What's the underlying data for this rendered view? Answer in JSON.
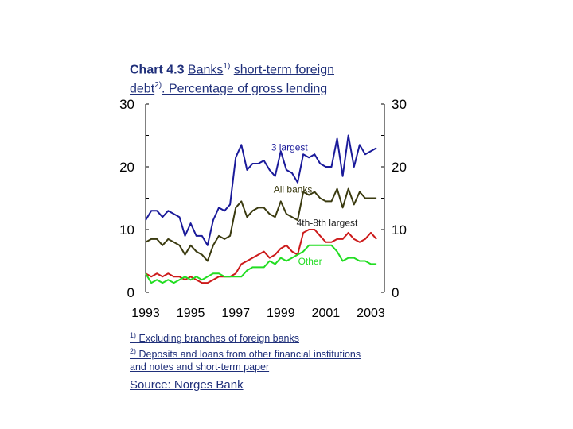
{
  "title": {
    "prefix": "Chart 4.3",
    "word1": "Banks",
    "sup1": "1)",
    "rest1": "short-term foreign",
    "word2": "debt",
    "sup2": "2)",
    "rest2": ". Percentage of gross lending"
  },
  "notes": [
    {
      "mark": "1)",
      "text": "Excluding branches of foreign banks"
    },
    {
      "mark": "2)",
      "text": "Deposits and loans from other financial institutions"
    },
    {
      "mark": "",
      "text": "and notes and short-term paper"
    }
  ],
  "source": "Source: Norges Bank",
  "chart_data": {
    "type": "line",
    "xlim": [
      1993,
      2003.6
    ],
    "ylim": [
      0,
      30
    ],
    "y_ticks": [
      0,
      10,
      20,
      30
    ],
    "x_ticks": [
      1993,
      1995,
      1997,
      1999,
      2001,
      2003
    ],
    "grid": false,
    "series": [
      {
        "name": "3 largest",
        "color": "#1a1a9a",
        "x": [
          1993,
          1993.25,
          1993.5,
          1993.75,
          1994,
          1994.25,
          1994.5,
          1994.75,
          1995,
          1995.25,
          1995.5,
          1995.75,
          1996,
          1996.25,
          1996.5,
          1996.75,
          1997,
          1997.25,
          1997.5,
          1997.75,
          1998,
          1998.25,
          1998.5,
          1998.75,
          1999,
          1999.25,
          1999.5,
          1999.75,
          2000,
          2000.25,
          2000.5,
          2000.75,
          2001,
          2001.25,
          2001.5,
          2001.75,
          2002,
          2002.25,
          2002.5,
          2002.75,
          2003,
          2003.25
        ],
        "values": [
          11.5,
          13,
          13,
          12,
          13,
          12.5,
          12,
          9,
          11,
          9,
          9,
          7.5,
          11.5,
          13.5,
          13,
          14,
          21.5,
          23.5,
          19.5,
          20.5,
          20.5,
          21,
          19.5,
          18.5,
          22.5,
          19.5,
          19,
          17.5,
          22,
          21.5,
          22,
          20.5,
          20,
          20,
          24.5,
          18.5,
          25,
          20,
          23.5,
          22,
          22.5,
          23
        ]
      },
      {
        "name": "All banks",
        "color": "#3b3b10",
        "x": [
          1993,
          1993.25,
          1993.5,
          1993.75,
          1994,
          1994.25,
          1994.5,
          1994.75,
          1995,
          1995.25,
          1995.5,
          1995.75,
          1996,
          1996.25,
          1996.5,
          1996.75,
          1997,
          1997.25,
          1997.5,
          1997.75,
          1998,
          1998.25,
          1998.5,
          1998.75,
          1999,
          1999.25,
          1999.5,
          1999.75,
          2000,
          2000.25,
          2000.5,
          2000.75,
          2001,
          2001.25,
          2001.5,
          2001.75,
          2002,
          2002.25,
          2002.5,
          2002.75,
          2003,
          2003.25
        ],
        "values": [
          8,
          8.5,
          8.5,
          7.5,
          8.5,
          8,
          7.5,
          6,
          7.5,
          6.5,
          6,
          5,
          7.5,
          9,
          8.5,
          9,
          13.5,
          14.5,
          12,
          13,
          13.5,
          13.5,
          12.5,
          12,
          14.5,
          12.5,
          12,
          11.5,
          16,
          15.5,
          16,
          15,
          14.5,
          14.5,
          16.5,
          13.5,
          16.5,
          14,
          16,
          15,
          15,
          15
        ]
      },
      {
        "name": "4th-8th largest",
        "color": "#cc1a1a",
        "x": [
          1993,
          1993.25,
          1993.5,
          1993.75,
          1994,
          1994.25,
          1994.5,
          1994.75,
          1995,
          1995.25,
          1995.5,
          1995.75,
          1996,
          1996.25,
          1996.5,
          1996.75,
          1997,
          1997.25,
          1997.5,
          1997.75,
          1998,
          1998.25,
          1998.5,
          1998.75,
          1999,
          1999.25,
          1999.5,
          1999.75,
          2000,
          2000.25,
          2000.5,
          2000.75,
          2001,
          2001.25,
          2001.5,
          2001.75,
          2002,
          2002.25,
          2002.5,
          2002.75,
          2003,
          2003.25
        ],
        "values": [
          3,
          2.5,
          3,
          2.5,
          3,
          2.5,
          2.5,
          2,
          2.5,
          2,
          1.5,
          1.5,
          2,
          2.5,
          2.5,
          2.5,
          3,
          4.5,
          5,
          5.5,
          6,
          6.5,
          5.5,
          6,
          7,
          7.5,
          6.5,
          6,
          9.5,
          10,
          10,
          9,
          8,
          8,
          8.5,
          8.5,
          9.5,
          8.5,
          8,
          8.5,
          9.5,
          8.5
        ]
      },
      {
        "name": "Other",
        "color": "#22dd22",
        "x": [
          1993,
          1993.25,
          1993.5,
          1993.75,
          1994,
          1994.25,
          1994.5,
          1994.75,
          1995,
          1995.25,
          1995.5,
          1995.75,
          1996,
          1996.25,
          1996.5,
          1996.75,
          1997,
          1997.25,
          1997.5,
          1997.75,
          1998,
          1998.25,
          1998.5,
          1998.75,
          1999,
          1999.25,
          1999.5,
          1999.75,
          2000,
          2000.25,
          2000.5,
          2000.75,
          2001,
          2001.25,
          2001.5,
          2001.75,
          2002,
          2002.25,
          2002.5,
          2002.75,
          2003,
          2003.25
        ],
        "values": [
          3,
          1.5,
          2,
          1.5,
          2,
          1.5,
          2,
          2.5,
          2,
          2.5,
          2,
          2.5,
          3,
          3,
          2.5,
          2.5,
          2.5,
          2.5,
          3.5,
          4,
          4,
          4,
          5,
          4.5,
          5.5,
          5,
          5.5,
          6,
          6.5,
          7.5,
          7.5,
          7.5,
          7.5,
          7.5,
          6.5,
          5,
          5.5,
          5.5,
          5,
          5,
          4.5,
          4.5
        ]
      }
    ]
  }
}
